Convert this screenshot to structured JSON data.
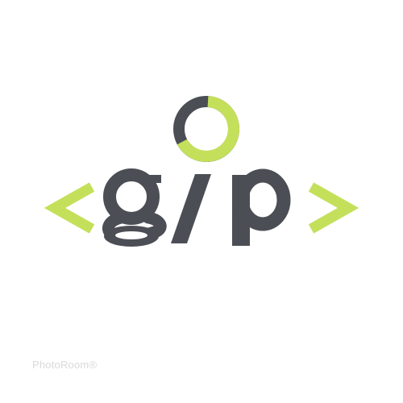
{
  "logo": {
    "wordmark": "<g/p>",
    "colors": {
      "dark": "#4b4f55",
      "accent": "#c4e05b",
      "background": "#ffffff"
    },
    "icons": [
      "left-angle-bracket-icon",
      "ring-icon",
      "right-angle-bracket-icon"
    ]
  },
  "watermark": {
    "text": "PhotoRoom®"
  }
}
